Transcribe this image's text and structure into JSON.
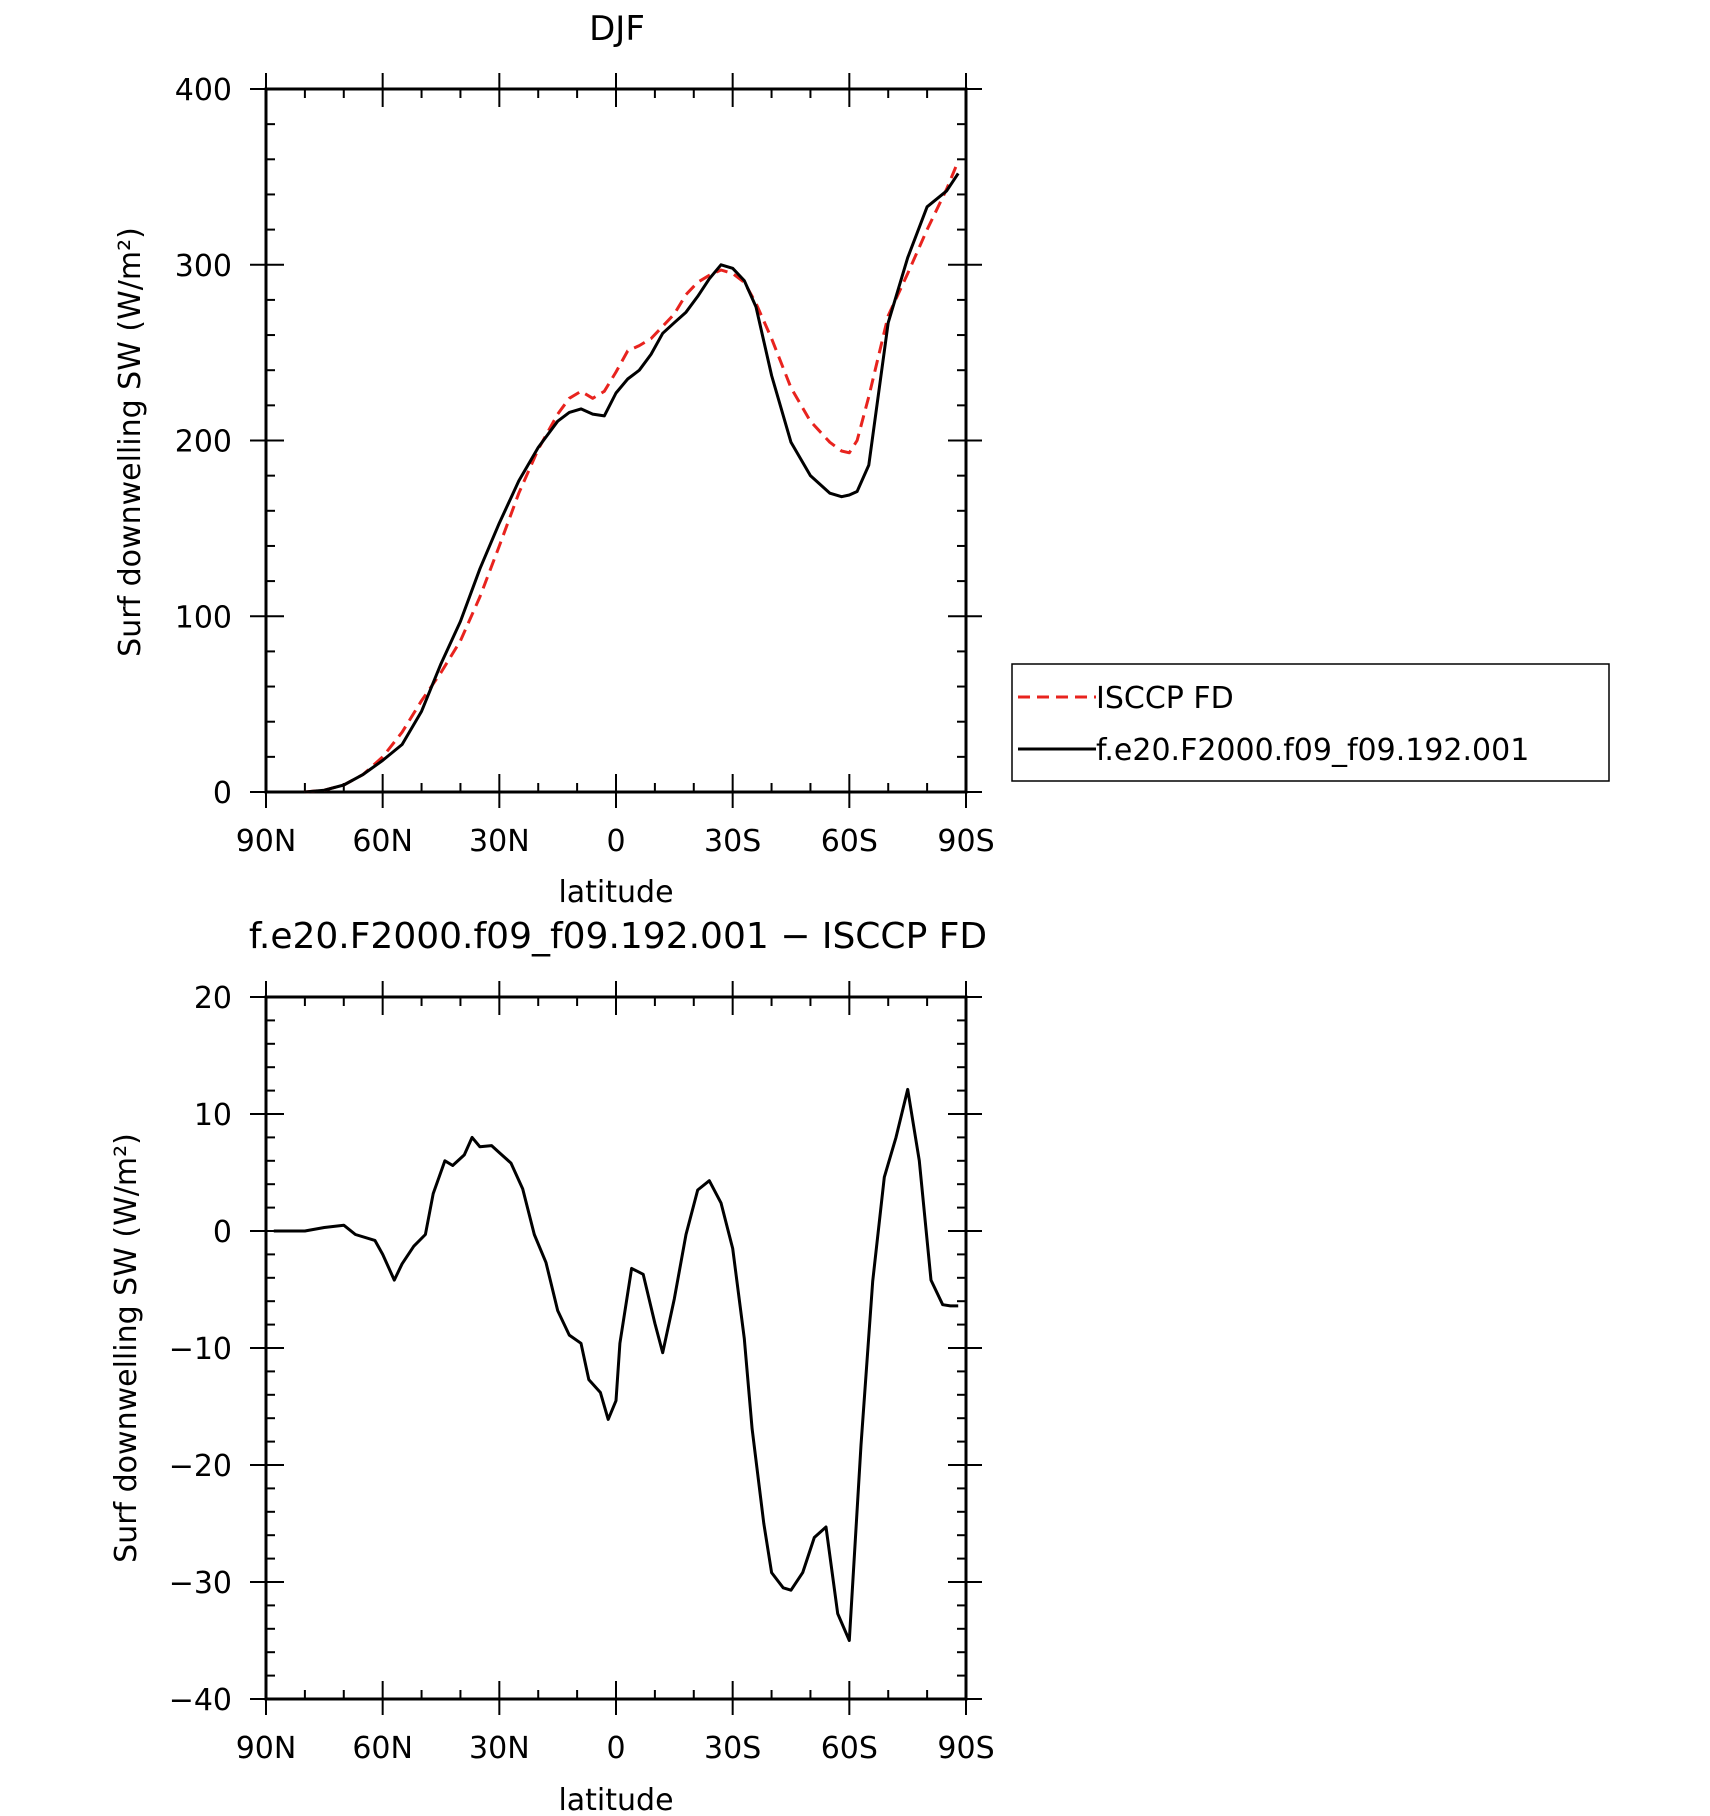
{
  "chart_data": [
    {
      "type": "line",
      "title": "DJF",
      "xlabel": "latitude",
      "ylabel": "Surf downwelling SW (W/m²)",
      "xlim": [
        90,
        -90
      ],
      "ylim": [
        0,
        400
      ],
      "x_ticks": [
        {
          "value": 90,
          "label": "90N"
        },
        {
          "value": 60,
          "label": "60N"
        },
        {
          "value": 30,
          "label": "30N"
        },
        {
          "value": 0,
          "label": "0"
        },
        {
          "value": -30,
          "label": "30S"
        },
        {
          "value": -60,
          "label": "60S"
        },
        {
          "value": -90,
          "label": "90S"
        }
      ],
      "y_ticks": [
        {
          "value": 0,
          "label": "0"
        },
        {
          "value": 100,
          "label": "100"
        },
        {
          "value": 200,
          "label": "200"
        },
        {
          "value": 300,
          "label": "300"
        },
        {
          "value": 400,
          "label": "400"
        }
      ],
      "legend": {
        "placement": "right"
      },
      "series": [
        {
          "name": "ISCCP FD",
          "color": "#e8231e",
          "dash": "dashed",
          "x": [
            80,
            75,
            70,
            65,
            60,
            55,
            50,
            45,
            40,
            35,
            30,
            25,
            20,
            15,
            12,
            9,
            6,
            3,
            0,
            -3,
            -6,
            -9,
            -12,
            -15,
            -18,
            -21,
            -24,
            -27,
            -30,
            -33,
            -36,
            -40,
            -45,
            -50,
            -55,
            -58,
            -60,
            -62,
            -65,
            -70,
            -75,
            -80,
            -85,
            -88
          ],
          "y": [
            0,
            1,
            4,
            10,
            20,
            34,
            52,
            68,
            86,
            111,
            140,
            170,
            195,
            215,
            224,
            228,
            224,
            228,
            239,
            251,
            254,
            258,
            265,
            272,
            283,
            290,
            294,
            297,
            295,
            290,
            278,
            258,
            230,
            211,
            199,
            194,
            193,
            200,
            225,
            271,
            295,
            320,
            343,
            359
          ]
        },
        {
          "name": "f.e20.F2000.f09_f09.192.001",
          "color": "#000000",
          "dash": "solid",
          "x": [
            80,
            75,
            70,
            65,
            60,
            55,
            50,
            45,
            40,
            35,
            30,
            25,
            20,
            15,
            12,
            9,
            6,
            3,
            0,
            -3,
            -6,
            -9,
            -12,
            -15,
            -18,
            -21,
            -24,
            -27,
            -30,
            -33,
            -36,
            -40,
            -45,
            -50,
            -55,
            -58,
            -60,
            -62,
            -65,
            -70,
            -75,
            -80,
            -85,
            -88
          ],
          "y": [
            0,
            1,
            4,
            10,
            18,
            27,
            46,
            73,
            97,
            127,
            153,
            177,
            196,
            211,
            216,
            218,
            215,
            214,
            227,
            235,
            240,
            249,
            261,
            267,
            273,
            282,
            292,
            300,
            298,
            291,
            276,
            237,
            199,
            180,
            170,
            168,
            169,
            171,
            186,
            267,
            304,
            333,
            342,
            352
          ]
        }
      ]
    },
    {
      "type": "line",
      "title": "f.e20.F2000.f09_f09.192.001 − ISCCP FD",
      "xlabel": "latitude",
      "ylabel": "Surf downwelling SW (W/m²)",
      "xlim": [
        90,
        -90
      ],
      "ylim": [
        -40,
        20
      ],
      "x_ticks": [
        {
          "value": 90,
          "label": "90N"
        },
        {
          "value": 60,
          "label": "60N"
        },
        {
          "value": 30,
          "label": "30N"
        },
        {
          "value": 0,
          "label": "0"
        },
        {
          "value": -30,
          "label": "30S"
        },
        {
          "value": -60,
          "label": "60S"
        },
        {
          "value": -90,
          "label": "90S"
        }
      ],
      "y_ticks": [
        {
          "value": -40,
          "label": "−40"
        },
        {
          "value": -30,
          "label": "−30"
        },
        {
          "value": -20,
          "label": "−20"
        },
        {
          "value": -10,
          "label": "−10"
        },
        {
          "value": 0,
          "label": "0"
        },
        {
          "value": 10,
          "label": "10"
        },
        {
          "value": 20,
          "label": "20"
        }
      ],
      "series": [
        {
          "color": "#000000",
          "x": [
            88,
            80,
            75,
            70,
            67,
            62,
            60,
            57,
            55,
            52,
            49,
            47,
            44,
            42,
            39,
            37,
            35,
            32,
            30,
            27,
            24,
            21,
            18,
            15,
            12,
            9,
            7,
            4,
            2,
            0,
            -1,
            -4,
            -7,
            -10,
            -12,
            -15,
            -18,
            -21,
            -24,
            -27,
            -30,
            -33,
            -35,
            -38,
            -40,
            -43,
            -45,
            -48,
            -51,
            -54,
            -57,
            -60,
            -63,
            -66,
            -69,
            -72,
            -75,
            -78,
            -81,
            -84,
            -86,
            -88
          ],
          "y": [
            0,
            0,
            0.3,
            0.5,
            -0.3,
            -0.8,
            -2,
            -4.2,
            -2.8,
            -1.3,
            -0.3,
            3.2,
            6,
            5.6,
            6.5,
            8,
            7.2,
            7.3,
            6.7,
            5.8,
            3.6,
            -0.3,
            -2.7,
            -6.8,
            -8.9,
            -9.6,
            -12.7,
            -13.8,
            -16.1,
            -14.5,
            -9.6,
            -3.2,
            -3.7,
            -7.9,
            -10.4,
            -5.8,
            -0.3,
            3.5,
            4.3,
            2.4,
            -1.5,
            -9.2,
            -16.9,
            -25,
            -29.2,
            -30.5,
            -30.7,
            -29.2,
            -26.2,
            -25.3,
            -32.7,
            -35,
            -18.3,
            -4.3,
            4.6,
            8,
            12.1,
            6,
            -4.2,
            -6.3,
            -6.4,
            -6.4
          ]
        }
      ]
    }
  ]
}
